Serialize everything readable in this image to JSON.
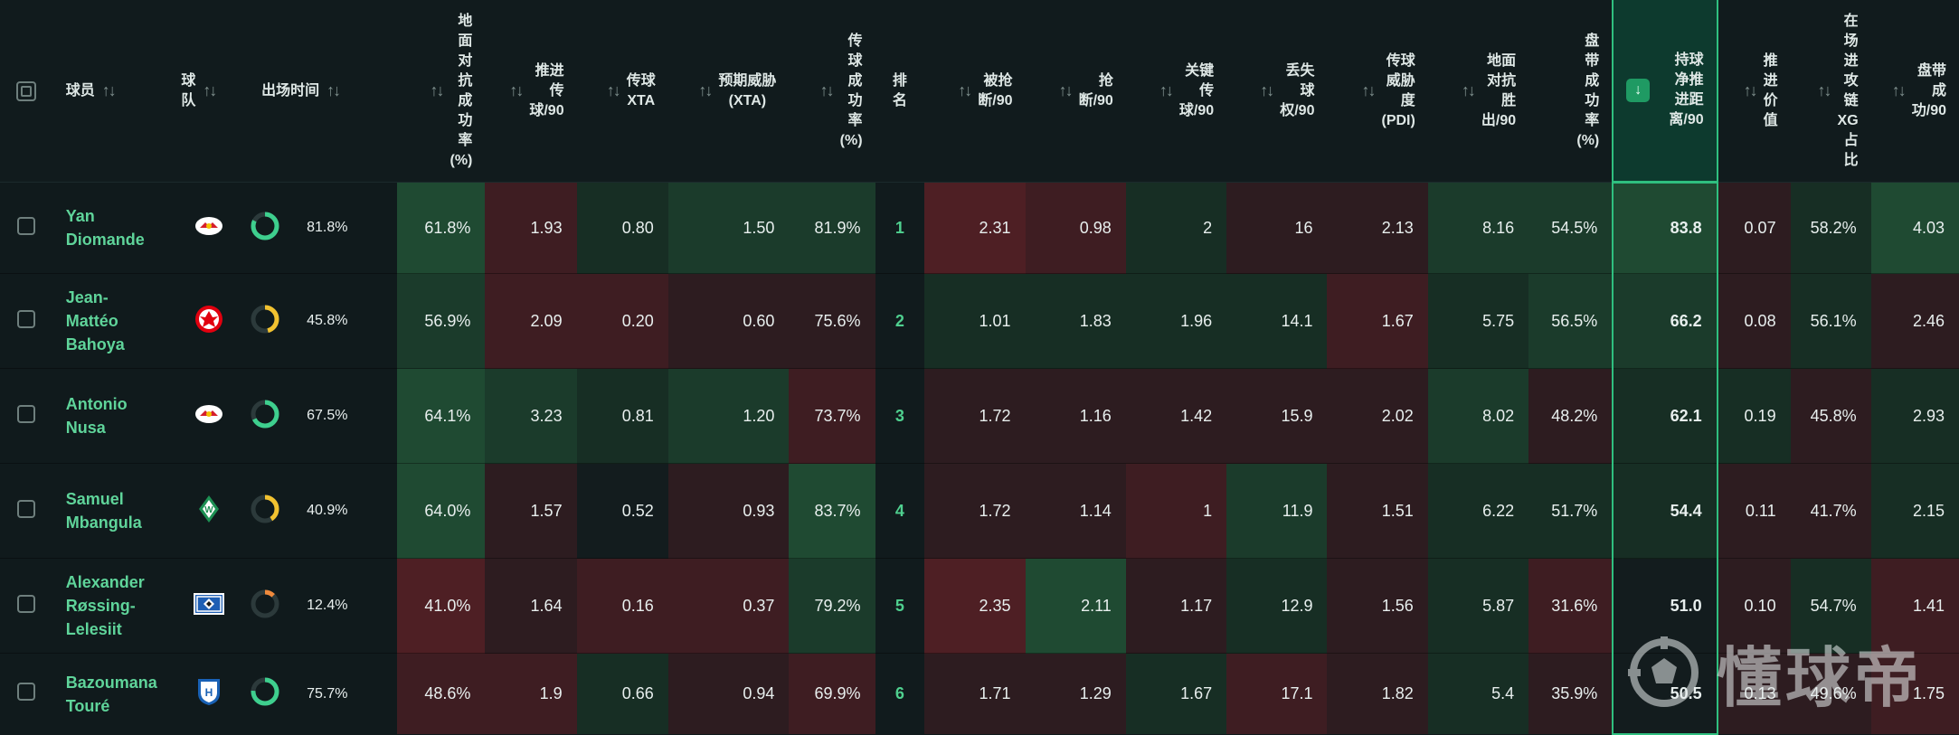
{
  "header": {
    "player": "球员",
    "team": "球\n队",
    "time": "出场时间",
    "ground_duel": "地\n面\n对\n抗\n成\n功\n率\n(%)",
    "prog_pass": "推进\n传\n球/90",
    "pass_xta": "传球\nXTA",
    "xta": "预期威胁\n(XTA)",
    "pass_acc": "传\n球\n成\n功\n率\n(%)",
    "rank": "排\n名",
    "dispossessed": "被抢\n断/90",
    "tackles": "抢\n断/90",
    "key_pass": "关键\n传\n球/90",
    "poss_lost": "丢失\n球\n权/90",
    "pdi": "传球\n威胁\n度\n(PDI)",
    "ground_won": "地面\n对抗\n胜\n出/90",
    "dribble": "盘\n带\n成\n功\n率\n(%)",
    "carry_dist": "持球\n净推\n进距\n离/90",
    "prog_value": "推\n进\n价\n值",
    "xg_share": "在\n场\n进\n攻\n链\nXG\n占\n比",
    "dribble_success": "盘带\n成\n功/90"
  },
  "icons": {
    "sort": "sort-arrows-icon",
    "sort_desc": "arrow-down-icon",
    "checkbox": "checkbox-icon"
  },
  "colors": {
    "accent": "#2fbf7f",
    "name": "#5fd49a",
    "ring_green": "#3ecf8e",
    "ring_yellow": "#f2c230",
    "ring_orange": "#f08a3c"
  },
  "rows": [
    {
      "name": "Yan\nDiomande",
      "team_icon": "rb-leipzig-crest-icon",
      "time_pct": 0.818,
      "time": "81.8%",
      "ring": "green",
      "cells": [
        "61.8%",
        "1.93",
        "0.80",
        "1.50",
        "81.9%"
      ],
      "rank": "1",
      "cells2": [
        "2.31",
        "0.98",
        "2",
        "16",
        "2.13",
        "8.16",
        "54.5%"
      ],
      "dist": "83.8",
      "cells3": [
        "0.07",
        "58.2%",
        "4.03"
      ],
      "cls": [
        "g3",
        "r2",
        "g1",
        "g2",
        "g2",
        "r3",
        "r2",
        "g1",
        "r1",
        "r1",
        "g2",
        "g2",
        "g3",
        "r1",
        "g1",
        "g3"
      ]
    },
    {
      "name": "Jean-\nMattéo\nBahoya",
      "team_icon": "eintracht-frankfurt-crest-icon",
      "time_pct": 0.458,
      "time": "45.8%",
      "ring": "yellow",
      "cells": [
        "56.9%",
        "2.09",
        "0.20",
        "0.60",
        "75.6%"
      ],
      "rank": "2",
      "cells2": [
        "1.01",
        "1.83",
        "1.96",
        "14.1",
        "1.67",
        "5.75",
        "56.5%"
      ],
      "dist": "66.2",
      "cells3": [
        "0.08",
        "56.1%",
        "2.46"
      ],
      "cls": [
        "g2",
        "r2",
        "r2",
        "r1",
        "r1",
        "g1",
        "g1",
        "g1",
        "g1",
        "r2",
        "g1",
        "g2",
        "g2",
        "r1",
        "g1",
        "r1"
      ]
    },
    {
      "name": "Antonio\nNusa",
      "team_icon": "rb-leipzig-crest-icon",
      "time_pct": 0.675,
      "time": "67.5%",
      "ring": "green",
      "cells": [
        "64.1%",
        "3.23",
        "0.81",
        "1.20",
        "73.7%"
      ],
      "rank": "3",
      "cells2": [
        "1.72",
        "1.16",
        "1.42",
        "15.9",
        "2.02",
        "8.02",
        "48.2%"
      ],
      "dist": "62.1",
      "cells3": [
        "0.19",
        "45.8%",
        "2.93"
      ],
      "cls": [
        "g3",
        "g2",
        "g1",
        "g2",
        "r2",
        "r1",
        "r1",
        "r1",
        "r1",
        "r1",
        "g2",
        "r1",
        "g1",
        "g1",
        "r1",
        "g1"
      ]
    },
    {
      "name": "Samuel\nMbangula",
      "team_icon": "werder-bremen-crest-icon",
      "time_pct": 0.409,
      "time": "40.9%",
      "ring": "yellow",
      "cells": [
        "64.0%",
        "1.57",
        "0.52",
        "0.93",
        "83.7%"
      ],
      "rank": "4",
      "cells2": [
        "1.72",
        "1.14",
        "1",
        "11.9",
        "1.51",
        "6.22",
        "51.7%"
      ],
      "dist": "54.4",
      "cells3": [
        "0.11",
        "41.7%",
        "2.15"
      ],
      "cls": [
        "g3",
        "r1",
        "n0",
        "r1",
        "g3",
        "r1",
        "r1",
        "r2",
        "g2",
        "r1",
        "g1",
        "g1",
        "g1",
        "r1",
        "r1",
        "g1"
      ]
    },
    {
      "name": "Alexander\nRøssing-\nLelesiit",
      "team_icon": "hamburger-sv-crest-icon",
      "time_pct": 0.124,
      "time": "12.4%",
      "ring": "orange",
      "cells": [
        "41.0%",
        "1.64",
        "0.16",
        "0.37",
        "79.2%"
      ],
      "rank": "5",
      "cells2": [
        "2.35",
        "2.11",
        "1.17",
        "12.9",
        "1.56",
        "5.87",
        "31.6%"
      ],
      "dist": "51.0",
      "cells3": [
        "0.10",
        "54.7%",
        "1.41"
      ],
      "cls": [
        "r3",
        "r1",
        "r2",
        "r2",
        "g2",
        "r3",
        "g3",
        "r1",
        "g1",
        "r1",
        "g1",
        "r2",
        "n0",
        "r1",
        "g1",
        "r2"
      ]
    },
    {
      "name": "Bazoumana\nTouré",
      "team_icon": "tsg-hoffenheim-crest-icon",
      "time_pct": 0.757,
      "time": "75.7%",
      "ring": "green",
      "cells": [
        "48.6%",
        "1.9",
        "0.66",
        "0.94",
        "69.9%"
      ],
      "rank": "6",
      "cells2": [
        "1.71",
        "1.29",
        "1.67",
        "17.1",
        "1.82",
        "5.4",
        "35.9%"
      ],
      "dist": "50.5",
      "cells3": [
        "0.13",
        "49.6%",
        "1.75"
      ],
      "cls": [
        "r2",
        "r2",
        "g1",
        "r1",
        "r2",
        "r1",
        "r1",
        "g1",
        "r2",
        "r1",
        "g1",
        "r1",
        "n0",
        "r1",
        "r1",
        "r2"
      ]
    }
  ],
  "watermark": {
    "text": "懂球帝",
    "logo": "dongqiudi-logo-icon"
  }
}
